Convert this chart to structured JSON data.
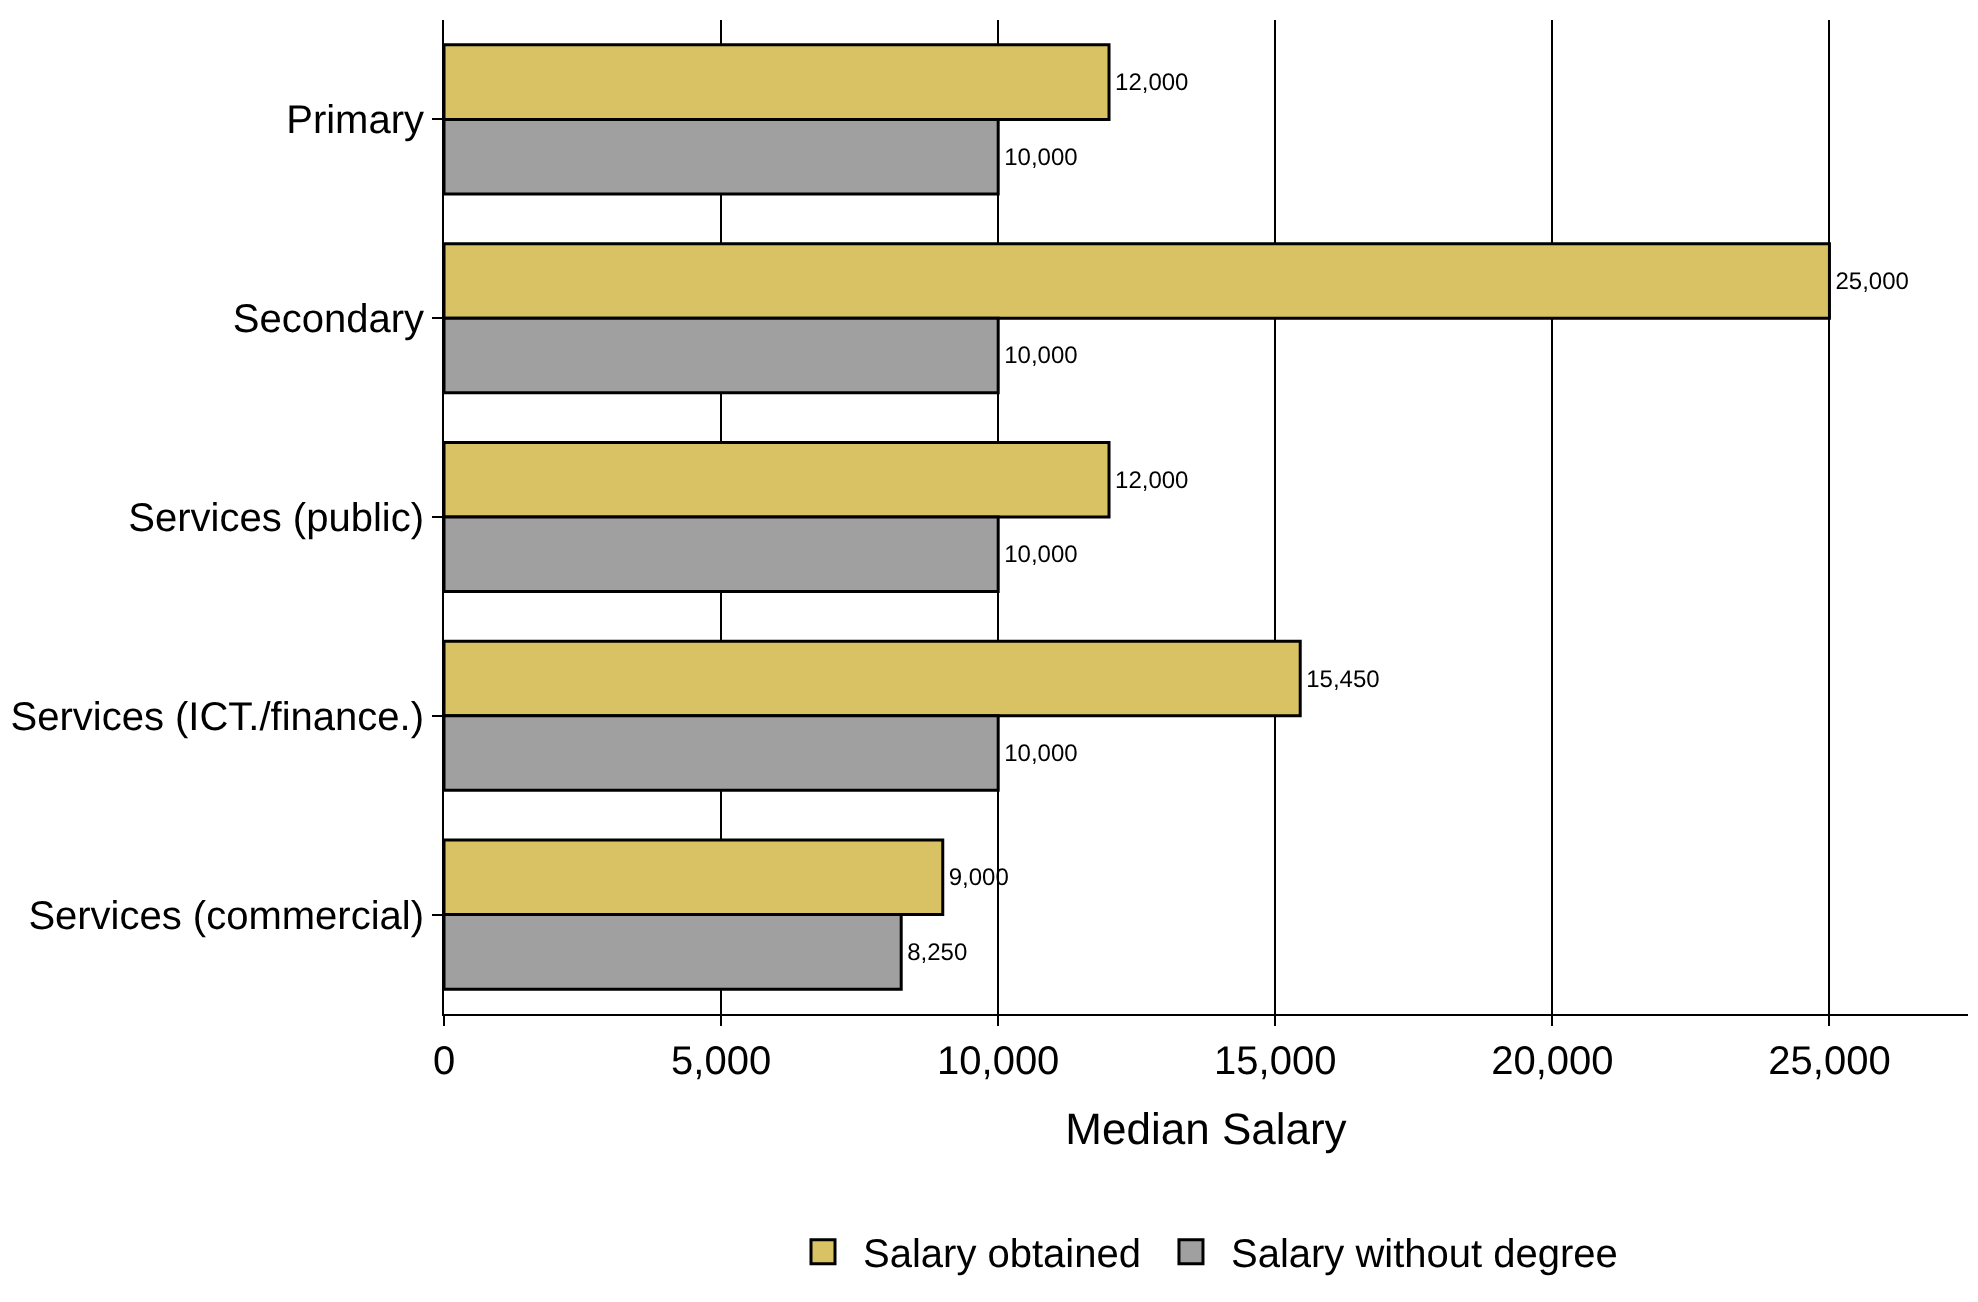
{
  "chart_data": {
    "type": "bar",
    "orientation": "horizontal",
    "xlabel": "Median Salary",
    "categories": [
      "Primary",
      "Secondary",
      "Services (public)",
      "Services (ICT./finance.)",
      "Services (commercial)"
    ],
    "series": [
      {
        "name": "Salary obtained",
        "color": "#d9c263",
        "values": [
          12000,
          25000,
          12000,
          15450,
          9000
        ],
        "value_labels": [
          "12,000",
          "25,000",
          "12,000",
          "15,450",
          "9,000"
        ]
      },
      {
        "name": "Salary without degree",
        "color": "#a0a0a0",
        "values": [
          10000,
          10000,
          10000,
          10000,
          8250
        ],
        "value_labels": [
          "10,000",
          "10,000",
          "10,000",
          "10,000",
          "8,250"
        ]
      }
    ],
    "xlim": [
      0,
      27500
    ],
    "xticks": [
      0,
      {
        "value": 5000,
        "label": "5,000"
      },
      {
        "value": 10000,
        "label": "10,000"
      },
      {
        "value": 15000,
        "label": "15,000"
      },
      {
        "value": 20000,
        "label": "20,000"
      },
      {
        "value": 25000,
        "label": "25,000"
      }
    ],
    "grid": "x",
    "legend": "bottom"
  }
}
